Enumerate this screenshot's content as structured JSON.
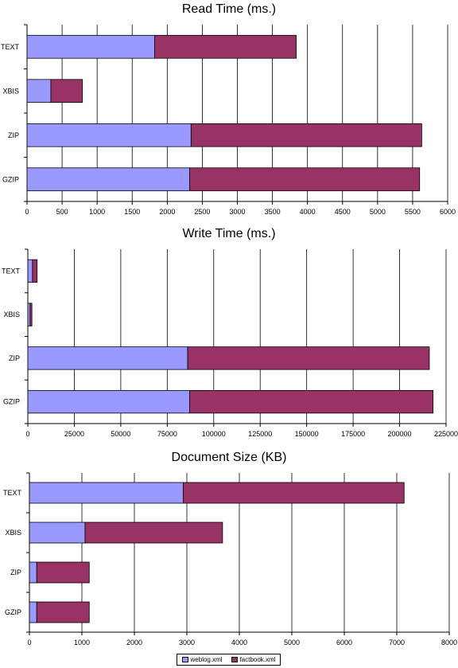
{
  "colors": {
    "weblog": "#9999ff",
    "factbook": "#993366",
    "grid": "#000000"
  },
  "legend": {
    "items": [
      "weblog.xml",
      "factbook.xml"
    ]
  },
  "chart_data": [
    {
      "type": "bar",
      "stacked": true,
      "orientation": "horizontal",
      "title": "Read Time (ms.)",
      "categories": [
        "TEXT",
        "XBIS",
        "ZIP",
        "GZIP"
      ],
      "series": [
        {
          "name": "weblog.xml",
          "values": [
            1820,
            340,
            2340,
            2320
          ]
        },
        {
          "name": "factbook.xml",
          "values": [
            2020,
            450,
            3290,
            3280
          ]
        }
      ],
      "xlim": [
        0,
        6000
      ],
      "xticks": [
        0,
        500,
        1000,
        1500,
        2000,
        2500,
        3000,
        3500,
        4000,
        4500,
        5000,
        5500,
        6000
      ],
      "grid": true
    },
    {
      "type": "bar",
      "stacked": true,
      "orientation": "horizontal",
      "title": "Write Time (ms.)",
      "categories": [
        "TEXT",
        "XBIS",
        "ZIP",
        "GZIP"
      ],
      "series": [
        {
          "name": "weblog.xml",
          "values": [
            2500,
            1200,
            86000,
            87000
          ]
        },
        {
          "name": "factbook.xml",
          "values": [
            2500,
            1000,
            130000,
            131000
          ]
        }
      ],
      "xlim": [
        0,
        225000
      ],
      "xticks": [
        0,
        25000,
        50000,
        75000,
        100000,
        125000,
        150000,
        175000,
        200000,
        225000
      ],
      "grid": true
    },
    {
      "type": "bar",
      "stacked": true,
      "orientation": "horizontal",
      "title": "Document Size (KB)",
      "categories": [
        "TEXT",
        "XBIS",
        "ZIP",
        "GZIP"
      ],
      "series": [
        {
          "name": "weblog.xml",
          "values": [
            2930,
            1060,
            140,
            140
          ]
        },
        {
          "name": "factbook.xml",
          "values": [
            4210,
            2620,
            1000,
            1000
          ]
        }
      ],
      "xlim": [
        0,
        8000
      ],
      "xticks": [
        0,
        1000,
        2000,
        3000,
        4000,
        5000,
        6000,
        7000,
        8000
      ],
      "grid": true
    }
  ]
}
